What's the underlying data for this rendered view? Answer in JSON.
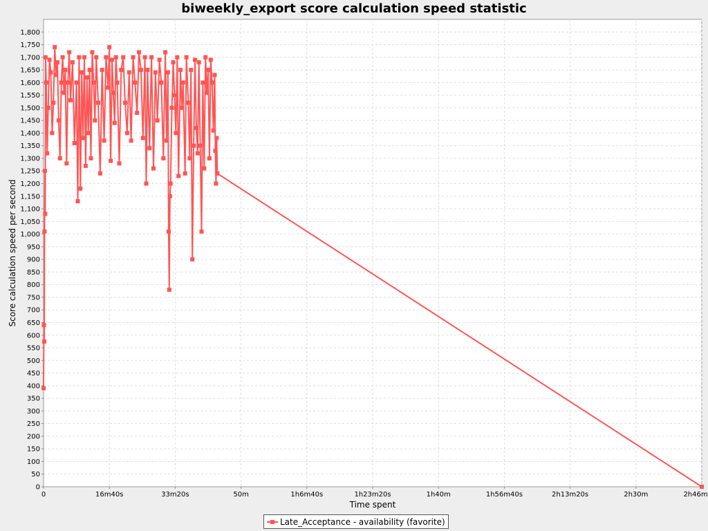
{
  "chart_data": {
    "type": "line",
    "title": "biweekly_export score calculation speed statistic",
    "xlabel": "Time spent",
    "ylabel": "Score calculation speed per second",
    "xlim": [
      0,
      10000
    ],
    "ylim": [
      0,
      1850
    ],
    "x_ticks": [
      {
        "value": 0,
        "label": "0"
      },
      {
        "value": 1000,
        "label": "16m40s"
      },
      {
        "value": 2000,
        "label": "33m20s"
      },
      {
        "value": 3000,
        "label": "50m"
      },
      {
        "value": 4000,
        "label": "1h6m40s"
      },
      {
        "value": 5000,
        "label": "1h23m20s"
      },
      {
        "value": 6000,
        "label": "1h40m"
      },
      {
        "value": 7000,
        "label": "1h56m40s"
      },
      {
        "value": 8000,
        "label": "2h13m20s"
      },
      {
        "value": 9000,
        "label": "2h30m"
      },
      {
        "value": 10000,
        "label": "2h46m40s"
      }
    ],
    "y_ticks": [
      "0",
      "50",
      "100",
      "150",
      "200",
      "250",
      "300",
      "350",
      "400",
      "450",
      "500",
      "550",
      "600",
      "650",
      "700",
      "750",
      "800",
      "850",
      "900",
      "950",
      "1,000",
      "1,050",
      "1,100",
      "1,150",
      "1,200",
      "1,250",
      "1,300",
      "1,350",
      "1,400",
      "1,450",
      "1,500",
      "1,550",
      "1,600",
      "1,650",
      "1,700",
      "1,750",
      "1,800"
    ],
    "grid": true,
    "legend": "bottom-center",
    "color": "#ff5555",
    "series": [
      {
        "name": "Late_Acceptance - availability (favorite)",
        "points": [
          [
            0,
            390
          ],
          [
            5,
            640
          ],
          [
            10,
            575
          ],
          [
            15,
            1010
          ],
          [
            20,
            1250
          ],
          [
            25,
            1080
          ],
          [
            30,
            1700
          ],
          [
            40,
            1600
          ],
          [
            55,
            1320
          ],
          [
            70,
            1500
          ],
          [
            90,
            1690
          ],
          [
            110,
            1640
          ],
          [
            130,
            1400
          ],
          [
            150,
            1520
          ],
          [
            170,
            1740
          ],
          [
            190,
            1630
          ],
          [
            210,
            1680
          ],
          [
            230,
            1450
          ],
          [
            250,
            1300
          ],
          [
            270,
            1600
          ],
          [
            290,
            1700
          ],
          [
            310,
            1560
          ],
          [
            330,
            1650
          ],
          [
            350,
            1280
          ],
          [
            370,
            1600
          ],
          [
            390,
            1720
          ],
          [
            410,
            1530
          ],
          [
            440,
            1680
          ],
          [
            470,
            1360
          ],
          [
            500,
            1600
          ],
          [
            520,
            1130
          ],
          [
            540,
            1700
          ],
          [
            560,
            1180
          ],
          [
            580,
            1640
          ],
          [
            600,
            1380
          ],
          [
            620,
            1700
          ],
          [
            640,
            1270
          ],
          [
            660,
            1620
          ],
          [
            680,
            1400
          ],
          [
            700,
            1650
          ],
          [
            720,
            1300
          ],
          [
            740,
            1720
          ],
          [
            760,
            1600
          ],
          [
            780,
            1450
          ],
          [
            800,
            1700
          ],
          [
            830,
            1520
          ],
          [
            860,
            1240
          ],
          [
            890,
            1650
          ],
          [
            920,
            1370
          ],
          [
            950,
            1700
          ],
          [
            980,
            1580
          ],
          [
            1000,
            1740
          ],
          [
            1020,
            1290
          ],
          [
            1040,
            1690
          ],
          [
            1060,
            1560
          ],
          [
            1080,
            1440
          ],
          [
            1100,
            1700
          ],
          [
            1120,
            1600
          ],
          [
            1150,
            1280
          ],
          [
            1180,
            1650
          ],
          [
            1210,
            1700
          ],
          [
            1240,
            1520
          ],
          [
            1270,
            1400
          ],
          [
            1300,
            1640
          ],
          [
            1330,
            1370
          ],
          [
            1360,
            1700
          ],
          [
            1390,
            1600
          ],
          [
            1420,
            1480
          ],
          [
            1450,
            1720
          ],
          [
            1480,
            1650
          ],
          [
            1510,
            1380
          ],
          [
            1540,
            1700
          ],
          [
            1560,
            1200
          ],
          [
            1580,
            1650
          ],
          [
            1610,
            1340
          ],
          [
            1640,
            1700
          ],
          [
            1670,
            1260
          ],
          [
            1700,
            1640
          ],
          [
            1730,
            1450
          ],
          [
            1760,
            1690
          ],
          [
            1790,
            1600
          ],
          [
            1820,
            1300
          ],
          [
            1850,
            1720
          ],
          [
            1870,
            1370
          ],
          [
            1890,
            1640
          ],
          [
            1900,
            1010
          ],
          [
            1910,
            780
          ],
          [
            1920,
            1150
          ],
          [
            1930,
            1200
          ],
          [
            1950,
            1500
          ],
          [
            1970,
            1680
          ],
          [
            1990,
            1550
          ],
          [
            2010,
            1400
          ],
          [
            2030,
            1700
          ],
          [
            2050,
            1230
          ],
          [
            2080,
            1650
          ],
          [
            2100,
            1500
          ],
          [
            2120,
            1600
          ],
          [
            2150,
            1240
          ],
          [
            2170,
            1700
          ],
          [
            2200,
            1520
          ],
          [
            2220,
            1300
          ],
          [
            2240,
            1650
          ],
          [
            2260,
            900
          ],
          [
            2280,
            1350
          ],
          [
            2300,
            1690
          ],
          [
            2320,
            1420
          ],
          [
            2340,
            1320
          ],
          [
            2360,
            1680
          ],
          [
            2380,
            1350
          ],
          [
            2400,
            1010
          ],
          [
            2420,
            1600
          ],
          [
            2440,
            1260
          ],
          [
            2460,
            1700
          ],
          [
            2480,
            1560
          ],
          [
            2500,
            1650
          ],
          [
            2520,
            1300
          ],
          [
            2540,
            1690
          ],
          [
            2560,
            1600
          ],
          [
            2580,
            1410
          ],
          [
            2600,
            1630
          ],
          [
            2610,
            1330
          ],
          [
            2620,
            1200
          ],
          [
            2630,
            1380
          ],
          [
            2640,
            1240
          ],
          [
            10000,
            0
          ]
        ]
      }
    ]
  }
}
